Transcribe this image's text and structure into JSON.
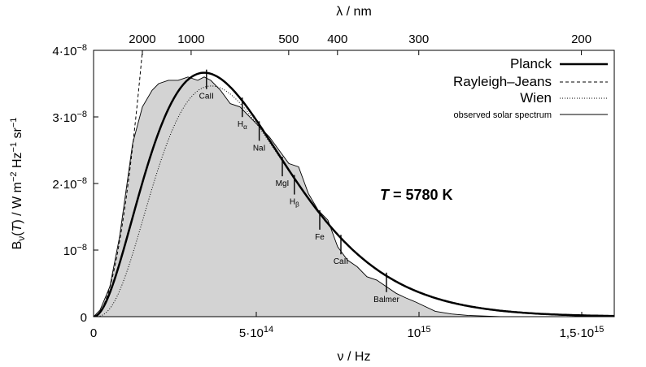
{
  "chart_data": {
    "type": "line",
    "title": "",
    "xlabel": "ν / Hz",
    "ylabel_parts": [
      "B",
      "ν",
      "(",
      "T",
      ") / W m",
      "−2",
      " Hz",
      "−1",
      " sr",
      "−1"
    ],
    "top_axis_label": "λ / nm",
    "xlim": [
      0,
      1600000000000000.0
    ],
    "ylim": [
      0,
      4e-08
    ],
    "x_ticks": [
      {
        "value": 0,
        "label": "0"
      },
      {
        "value": 500000000000000.0,
        "label": "5·10",
        "exp": "14"
      },
      {
        "value": 1000000000000000.0,
        "label": "10",
        "exp": "15"
      },
      {
        "value": 1500000000000000.0,
        "label": "1,5·10",
        "exp": "15"
      }
    ],
    "y_ticks": [
      {
        "value": 0,
        "label": "0"
      },
      {
        "value": 1e-08,
        "label": "10",
        "exp": "−8"
      },
      {
        "value": 2e-08,
        "label": "2·10",
        "exp": "−8"
      },
      {
        "value": 3e-08,
        "label": "3·10",
        "exp": "−8"
      },
      {
        "value": 4e-08,
        "label": "4·10",
        "exp": "−8"
      }
    ],
    "top_ticks_nm": [
      2000,
      1000,
      500,
      400,
      300,
      200
    ],
    "temperature_label": "T = 5780 K",
    "temperature_K": 5780,
    "legend_position": "top-right",
    "series": [
      {
        "name": "Planck",
        "style": "thick-solid"
      },
      {
        "name": "Rayleigh–Jeans",
        "style": "dashed"
      },
      {
        "name": "Wien",
        "style": "dotted"
      },
      {
        "name": "observed solar spectrum",
        "style": "thin-solid"
      }
    ],
    "observed_spectrum": {
      "x": [
        20000000000000.0,
        50000000000000.0,
        80000000000000.0,
        100000000000000.0,
        120000000000000.0,
        150000000000000.0,
        180000000000000.0,
        200000000000000.0,
        230000000000000.0,
        260000000000000.0,
        290000000000000.0,
        320000000000000.0,
        340000000000000.0,
        360000000000000.0,
        390000000000000.0,
        420000000000000.0,
        450000000000000.0,
        480000000000000.0,
        510000000000000.0,
        540000000000000.0,
        570000000000000.0,
        600000000000000.0,
        630000000000000.0,
        660000000000000.0,
        690000000000000.0,
        720000000000000.0,
        750000000000000.0,
        780000000000000.0,
        810000000000000.0,
        840000000000000.0,
        870000000000000.0,
        900000000000000.0,
        930000000000000.0,
        960000000000000.0,
        990000000000000.0,
        1050000000000000.0,
        1100000000000000.0,
        1150000000000000.0,
        1200000000000000.0,
        1250000000000000.0
      ],
      "y": [
        1e-09,
        4.5e-09,
        1.2e-08,
        1.9e-08,
        2.6e-08,
        3.15e-08,
        3.4e-08,
        3.5e-08,
        3.55e-08,
        3.55e-08,
        3.6e-08,
        3.55e-08,
        3.6e-08,
        3.55e-08,
        3.4e-08,
        3.2e-08,
        3.15e-08,
        3e-08,
        2.85e-08,
        2.7e-08,
        2.5e-08,
        2.3e-08,
        2.25e-08,
        1.85e-08,
        1.6e-08,
        1.45e-08,
        1.05e-08,
        8.5e-09,
        7.5e-09,
        6e-09,
        5.5e-09,
        4.5e-09,
        3.5e-09,
        2.8e-09,
        2.2e-09,
        8e-10,
        4e-10,
        2e-10,
        1e-10,
        0.0
      ]
    },
    "absorption_lines": [
      {
        "x": 347000000000000.0,
        "label": "CaII"
      },
      {
        "x": 457000000000000.0,
        "label": "H",
        "sub": "α"
      },
      {
        "x": 509000000000000.0,
        "label": "NaI"
      },
      {
        "x": 580000000000000.0,
        "label": "MgI"
      },
      {
        "x": 617000000000000.0,
        "label": "H",
        "sub": "β"
      },
      {
        "x": 695000000000000.0,
        "label": "Fe"
      },
      {
        "x": 760000000000000.0,
        "label": "CaII"
      },
      {
        "x": 900000000000000.0,
        "label": "Balmer"
      }
    ]
  }
}
